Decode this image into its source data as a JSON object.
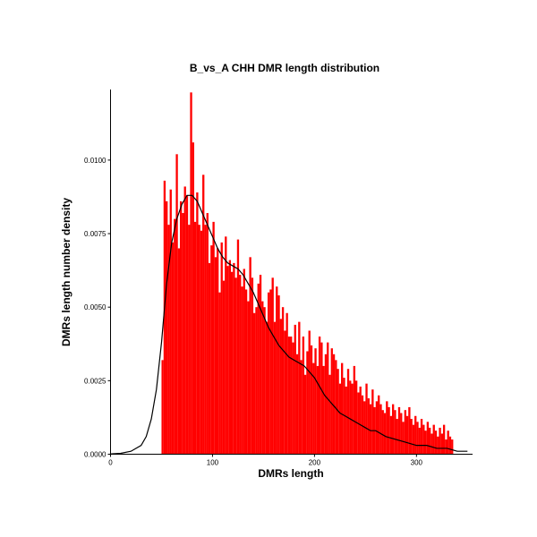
{
  "chart_data": {
    "type": "bar",
    "title": "B_vs_A  CHH  DMR  length  distribution",
    "xlabel": "DMRs   length",
    "ylabel": "DMRs   length   number   density",
    "xlim": [
      0,
      355
    ],
    "ylim": [
      0,
      0.0124
    ],
    "x_ticks": [
      {
        "value": 0,
        "label": "0"
      },
      {
        "value": 100,
        "label": "100"
      },
      {
        "value": 200,
        "label": "200"
      },
      {
        "value": 300,
        "label": "300"
      }
    ],
    "y_ticks": [
      {
        "value": 0,
        "label": "0.0000"
      },
      {
        "value": 0.0025,
        "label": "0.0025"
      },
      {
        "value": 0.005,
        "label": "0.0050"
      },
      {
        "value": 0.0075,
        "label": "0.0075"
      },
      {
        "value": 0.01,
        "label": "0.0100"
      }
    ],
    "grid": false,
    "bar_color": "#ff0000",
    "density_color": "#000000",
    "bins": {
      "start": 50,
      "width": 2,
      "values": [
        0.0032,
        0.0093,
        0.0086,
        0.0078,
        0.009,
        0.0072,
        0.008,
        0.0102,
        0.007,
        0.0086,
        0.0082,
        0.0091,
        0.0088,
        0.0078,
        0.0123,
        0.0106,
        0.0079,
        0.0089,
        0.0078,
        0.0076,
        0.0095,
        0.0078,
        0.0082,
        0.0065,
        0.0071,
        0.0079,
        0.0067,
        0.007,
        0.0055,
        0.0072,
        0.0059,
        0.0074,
        0.0064,
        0.0066,
        0.0062,
        0.0065,
        0.006,
        0.0073,
        0.0061,
        0.0057,
        0.0063,
        0.0056,
        0.0052,
        0.0067,
        0.006,
        0.0048,
        0.005,
        0.0058,
        0.0061,
        0.0052,
        0.005,
        0.0045,
        0.0055,
        0.0056,
        0.006,
        0.0045,
        0.0057,
        0.0054,
        0.0046,
        0.005,
        0.0042,
        0.0048,
        0.004,
        0.004,
        0.0038,
        0.0044,
        0.0034,
        0.0045,
        0.0032,
        0.004,
        0.0027,
        0.0035,
        0.0042,
        0.0037,
        0.0031,
        0.0036,
        0.003,
        0.004,
        0.0038,
        0.003,
        0.0034,
        0.0038,
        0.0027,
        0.0036,
        0.0034,
        0.0032,
        0.0029,
        0.0024,
        0.0031,
        0.0026,
        0.0023,
        0.0029,
        0.0025,
        0.0024,
        0.003,
        0.0025,
        0.0021,
        0.0023,
        0.002,
        0.0018,
        0.0024,
        0.0019,
        0.0017,
        0.0022,
        0.0016,
        0.0018,
        0.002,
        0.0017,
        0.0015,
        0.0014,
        0.0018,
        0.0016,
        0.0013,
        0.0017,
        0.0015,
        0.0012,
        0.0016,
        0.0014,
        0.0011,
        0.0015,
        0.0013,
        0.0016,
        0.0012,
        0.001,
        0.0013,
        0.0011,
        0.0009,
        0.0012,
        0.001,
        0.0008,
        0.0011,
        0.0009,
        0.0007,
        0.001,
        0.0008,
        0.0006,
        0.0009,
        0.0007,
        0.001,
        0.0005,
        0.0008,
        0.0006,
        0.0005
      ]
    },
    "density_curve": {
      "x": [
        0,
        10,
        20,
        30,
        35,
        40,
        45,
        50,
        55,
        60,
        65,
        70,
        75,
        80,
        85,
        90,
        95,
        100,
        105,
        110,
        115,
        120,
        125,
        130,
        135,
        140,
        145,
        150,
        155,
        160,
        165,
        170,
        175,
        180,
        185,
        190,
        195,
        200,
        205,
        210,
        215,
        220,
        225,
        230,
        235,
        240,
        245,
        250,
        255,
        260,
        270,
        280,
        290,
        300,
        310,
        320,
        330,
        340,
        350
      ],
      "y": [
        1e-05,
        3e-05,
        0.0001,
        0.0003,
        0.0006,
        0.0012,
        0.0022,
        0.0038,
        0.0058,
        0.0072,
        0.008,
        0.0085,
        0.0088,
        0.0088,
        0.0086,
        0.0082,
        0.0078,
        0.0074,
        0.007,
        0.0067,
        0.0065,
        0.0064,
        0.0063,
        0.0061,
        0.0058,
        0.0055,
        0.0051,
        0.0047,
        0.0043,
        0.004,
        0.0037,
        0.0035,
        0.0033,
        0.0032,
        0.0031,
        0.003,
        0.0028,
        0.0026,
        0.0023,
        0.002,
        0.0018,
        0.0016,
        0.0014,
        0.0013,
        0.0012,
        0.0011,
        0.001,
        0.0009,
        0.0008,
        0.0008,
        0.0006,
        0.0005,
        0.0004,
        0.0003,
        0.0003,
        0.0002,
        0.0002,
        0.0001,
        0.0001
      ]
    }
  }
}
